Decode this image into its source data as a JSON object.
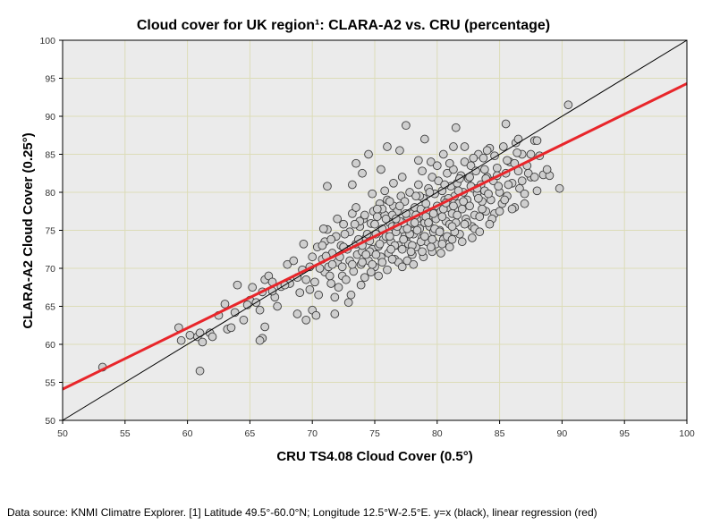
{
  "chart_data": {
    "type": "scatter",
    "title": "Cloud cover for UK region¹: CLARA-A2 vs. CRU (percentage)",
    "xlabel": "CRU TS4.08 Cloud Cover (0.5°)",
    "ylabel": "CLARA-A2 Cloud Cover (0.25°)",
    "xlim": [
      50,
      100
    ],
    "ylim": [
      50,
      100
    ],
    "xticks": [
      "50",
      "55",
      "60",
      "65",
      "70",
      "75",
      "80",
      "85",
      "90",
      "95",
      "100"
    ],
    "yticks": [
      "50",
      "55",
      "60",
      "65",
      "70",
      "75",
      "80",
      "85",
      "90",
      "95",
      "100"
    ],
    "grid": true,
    "reference_line": {
      "name": "y=x",
      "color": "#000000",
      "slope": 1,
      "intercept": 0
    },
    "regression_line": {
      "name": "linear regression",
      "color": "#e8262b",
      "x": [
        50,
        100
      ],
      "y": [
        54.1,
        94.3
      ]
    },
    "colors": {
      "plot_bg": "#ebebeb",
      "grid": "#dcdcb8",
      "point_fill": "#cfcfcf",
      "point_stroke": "#3a3a3a"
    },
    "points": [
      [
        53.2,
        57.0
      ],
      [
        59.3,
        62.2
      ],
      [
        59.5,
        60.5
      ],
      [
        60.8,
        61.0
      ],
      [
        61.0,
        61.5
      ],
      [
        61.2,
        60.3
      ],
      [
        61.0,
        56.5
      ],
      [
        61.8,
        61.5
      ],
      [
        62.5,
        63.8
      ],
      [
        63.0,
        65.3
      ],
      [
        63.2,
        62.0
      ],
      [
        63.8,
        64.2
      ],
      [
        64.0,
        67.8
      ],
      [
        64.5,
        63.2
      ],
      [
        65.0,
        65.8
      ],
      [
        65.5,
        65.5
      ],
      [
        65.8,
        64.5
      ],
      [
        66.0,
        66.9
      ],
      [
        66.2,
        68.5
      ],
      [
        66.5,
        69.0
      ],
      [
        66.8,
        68.2
      ],
      [
        66.0,
        60.8
      ],
      [
        66.2,
        62.3
      ],
      [
        65.8,
        60.5
      ],
      [
        67.0,
        66.2
      ],
      [
        67.2,
        65.0
      ],
      [
        67.5,
        67.6
      ],
      [
        68.0,
        70.5
      ],
      [
        68.2,
        68.0
      ],
      [
        68.5,
        71.0
      ],
      [
        68.8,
        64.0
      ],
      [
        69.0,
        66.8
      ],
      [
        69.2,
        69.8
      ],
      [
        69.3,
        73.2
      ],
      [
        69.5,
        68.5
      ],
      [
        69.8,
        70.2
      ],
      [
        70.0,
        71.5
      ],
      [
        70.2,
        68.2
      ],
      [
        70.4,
        72.8
      ],
      [
        70.5,
        66.5
      ],
      [
        70.8,
        71.2
      ],
      [
        71.0,
        69.5
      ],
      [
        71.0,
        73.5
      ],
      [
        71.2,
        75.1
      ],
      [
        71.3,
        70.2
      ],
      [
        71.5,
        68.0
      ],
      [
        71.6,
        72.0
      ],
      [
        71.8,
        66.2
      ],
      [
        71.9,
        74.2
      ],
      [
        72.0,
        70.8
      ],
      [
        72.2,
        71.5
      ],
      [
        72.3,
        73.0
      ],
      [
        72.4,
        69.0
      ],
      [
        72.5,
        75.8
      ],
      [
        72.7,
        68.5
      ],
      [
        72.8,
        72.5
      ],
      [
        73.0,
        71.0
      ],
      [
        73.0,
        74.8
      ],
      [
        73.2,
        77.2
      ],
      [
        73.3,
        69.6
      ],
      [
        73.5,
        73.2
      ],
      [
        73.6,
        71.8
      ],
      [
        73.8,
        75.5
      ],
      [
        73.9,
        70.5
      ],
      [
        74.0,
        72.2
      ],
      [
        74.1,
        76.5
      ],
      [
        74.2,
        68.8
      ],
      [
        74.3,
        74.0
      ],
      [
        74.5,
        71.0
      ],
      [
        74.6,
        73.6
      ],
      [
        74.7,
        75.9
      ],
      [
        74.8,
        72.5
      ],
      [
        74.9,
        77.5
      ],
      [
        75.0,
        70.2
      ],
      [
        75.1,
        74.5
      ],
      [
        75.2,
        76.8
      ],
      [
        75.3,
        72.9
      ],
      [
        75.4,
        78.5
      ],
      [
        75.5,
        71.5
      ],
      [
        75.6,
        75.2
      ],
      [
        75.7,
        73.8
      ],
      [
        75.8,
        77.0
      ],
      [
        75.9,
        74.2
      ],
      [
        76.0,
        79.0
      ],
      [
        76.1,
        72.0
      ],
      [
        76.2,
        76.0
      ],
      [
        76.3,
        73.5
      ],
      [
        76.4,
        75.5
      ],
      [
        76.5,
        78.2
      ],
      [
        76.6,
        71.2
      ],
      [
        76.7,
        74.8
      ],
      [
        76.8,
        77.5
      ],
      [
        76.9,
        73.0
      ],
      [
        77.0,
        76.2
      ],
      [
        77.1,
        79.5
      ],
      [
        77.2,
        72.5
      ],
      [
        77.3,
        75.0
      ],
      [
        77.4,
        78.8
      ],
      [
        77.5,
        74.0
      ],
      [
        77.6,
        76.8
      ],
      [
        77.7,
        73.2
      ],
      [
        77.8,
        80.0
      ],
      [
        77.9,
        75.8
      ],
      [
        78.0,
        77.2
      ],
      [
        78.1,
        74.5
      ],
      [
        78.2,
        78.0
      ],
      [
        78.3,
        72.8
      ],
      [
        78.4,
        76.5
      ],
      [
        78.5,
        81.0
      ],
      [
        78.6,
        75.2
      ],
      [
        78.7,
        77.8
      ],
      [
        78.8,
        74.0
      ],
      [
        78.9,
        79.2
      ],
      [
        79.0,
        76.0
      ],
      [
        79.1,
        78.5
      ],
      [
        79.2,
        73.5
      ],
      [
        79.3,
        80.5
      ],
      [
        79.4,
        75.5
      ],
      [
        79.5,
        77.0
      ],
      [
        79.6,
        82.0
      ],
      [
        79.7,
        74.8
      ],
      [
        79.8,
        79.8
      ],
      [
        79.9,
        76.5
      ],
      [
        80.0,
        78.2
      ],
      [
        80.1,
        81.5
      ],
      [
        80.2,
        75.0
      ],
      [
        80.3,
        77.5
      ],
      [
        80.4,
        80.2
      ],
      [
        80.5,
        73.8
      ],
      [
        80.6,
        79.0
      ],
      [
        80.7,
        76.2
      ],
      [
        80.8,
        82.5
      ],
      [
        80.9,
        78.0
      ],
      [
        81.0,
        75.8
      ],
      [
        81.1,
        80.8
      ],
      [
        81.2,
        77.2
      ],
      [
        81.3,
        83.0
      ],
      [
        81.4,
        79.5
      ],
      [
        81.5,
        76.0
      ],
      [
        81.6,
        81.2
      ],
      [
        81.7,
        78.5
      ],
      [
        81.8,
        74.5
      ],
      [
        81.9,
        82.2
      ],
      [
        82.0,
        77.8
      ],
      [
        82.1,
        80.0
      ],
      [
        82.2,
        84.0
      ],
      [
        82.3,
        76.5
      ],
      [
        82.4,
        79.0
      ],
      [
        82.5,
        81.8
      ],
      [
        82.6,
        78.2
      ],
      [
        82.7,
        83.5
      ],
      [
        82.8,
        75.5
      ],
      [
        82.9,
        80.5
      ],
      [
        83.0,
        77.0
      ],
      [
        83.1,
        82.8
      ],
      [
        83.2,
        79.8
      ],
      [
        83.3,
        85.0
      ],
      [
        83.4,
        76.8
      ],
      [
        83.5,
        81.0
      ],
      [
        83.6,
        78.8
      ],
      [
        83.7,
        84.5
      ],
      [
        83.8,
        80.2
      ],
      [
        83.9,
        77.5
      ],
      [
        84.0,
        82.0
      ],
      [
        84.2,
        85.8
      ],
      [
        84.3,
        79.0
      ],
      [
        84.5,
        81.5
      ],
      [
        84.6,
        77.2
      ],
      [
        84.8,
        83.2
      ],
      [
        85.0,
        80.0
      ],
      [
        85.2,
        78.5
      ],
      [
        85.3,
        86.0
      ],
      [
        85.5,
        82.5
      ],
      [
        85.6,
        79.5
      ],
      [
        85.8,
        84.0
      ],
      [
        86.0,
        81.2
      ],
      [
        86.2,
        78.0
      ],
      [
        86.3,
        86.5
      ],
      [
        86.5,
        82.8
      ],
      [
        86.6,
        80.5
      ],
      [
        86.8,
        85.0
      ],
      [
        87.0,
        79.8
      ],
      [
        87.2,
        83.5
      ],
      [
        87.5,
        82.0
      ],
      [
        87.8,
        86.8
      ],
      [
        88.0,
        80.2
      ],
      [
        88.2,
        84.8
      ],
      [
        88.5,
        82.3
      ],
      [
        89.0,
        82.2
      ],
      [
        89.8,
        80.5
      ],
      [
        90.5,
        91.5
      ],
      [
        85.5,
        89.0
      ],
      [
        86.5,
        87.0
      ],
      [
        81.5,
        88.5
      ],
      [
        81.3,
        86.0
      ],
      [
        79.0,
        87.0
      ],
      [
        77.5,
        88.8
      ],
      [
        77.0,
        85.5
      ],
      [
        76.0,
        86.0
      ],
      [
        75.5,
        83.0
      ],
      [
        74.5,
        85.0
      ],
      [
        74.0,
        82.5
      ],
      [
        73.5,
        83.8
      ],
      [
        71.2,
        80.8
      ],
      [
        73.2,
        81.0
      ],
      [
        78.5,
        84.2
      ],
      [
        79.5,
        84.0
      ],
      [
        80.5,
        85.0
      ],
      [
        82.2,
        86.0
      ],
      [
        84.0,
        85.5
      ],
      [
        72.5,
        72.8
      ],
      [
        73.8,
        76.2
      ],
      [
        74.4,
        74.5
      ],
      [
        75.0,
        75.8
      ],
      [
        75.6,
        77.8
      ],
      [
        76.4,
        77.0
      ],
      [
        76.8,
        75.5
      ],
      [
        77.4,
        74.2
      ],
      [
        77.9,
        76.0
      ],
      [
        78.6,
        79.5
      ],
      [
        79.2,
        77.5
      ],
      [
        79.8,
        75.2
      ],
      [
        80.4,
        76.8
      ],
      [
        80.9,
        79.2
      ],
      [
        81.6,
        77.0
      ],
      [
        82.4,
        76.0
      ],
      [
        83.0,
        75.2
      ],
      [
        83.6,
        77.8
      ],
      [
        84.4,
        76.5
      ],
      [
        85.0,
        77.5
      ],
      [
        86.0,
        77.8
      ],
      [
        87.0,
        78.5
      ],
      [
        70.6,
        70.0
      ],
      [
        71.4,
        69.0
      ],
      [
        72.1,
        67.5
      ],
      [
        73.1,
        66.5
      ],
      [
        73.9,
        67.8
      ],
      [
        74.7,
        69.5
      ],
      [
        75.3,
        69.0
      ],
      [
        76.0,
        69.8
      ],
      [
        76.9,
        70.8
      ],
      [
        77.6,
        71.0
      ],
      [
        78.1,
        70.5
      ],
      [
        78.9,
        71.5
      ],
      [
        79.6,
        72.2
      ],
      [
        80.3,
        72.0
      ],
      [
        81.0,
        72.8
      ],
      [
        69.8,
        67.2
      ],
      [
        70.0,
        64.5
      ],
      [
        70.3,
        63.8
      ],
      [
        71.8,
        64.0
      ],
      [
        72.9,
        65.5
      ],
      [
        69.5,
        63.2
      ],
      [
        68.8,
        68.8
      ],
      [
        70.9,
        75.2
      ],
      [
        72.0,
        76.5
      ],
      [
        73.5,
        78.0
      ],
      [
        74.8,
        79.8
      ],
      [
        75.8,
        80.2
      ],
      [
        76.5,
        81.2
      ],
      [
        77.2,
        82.0
      ],
      [
        78.8,
        82.8
      ],
      [
        80.0,
        83.5
      ],
      [
        81.0,
        83.8
      ],
      [
        82.9,
        84.5
      ],
      [
        84.6,
        84.8
      ],
      [
        85.6,
        84.2
      ],
      [
        87.5,
        85.0
      ],
      [
        88.8,
        83.0
      ],
      [
        86.8,
        81.5
      ],
      [
        86.2,
        83.8
      ],
      [
        83.8,
        83.0
      ],
      [
        82.6,
        82.0
      ],
      [
        81.8,
        81.8
      ],
      [
        80.6,
        81.0
      ],
      [
        79.4,
        80.0
      ],
      [
        78.3,
        79.5
      ],
      [
        77.0,
        78.2
      ],
      [
        76.2,
        78.8
      ],
      [
        75.2,
        77.8
      ],
      [
        74.2,
        77.0
      ],
      [
        73.4,
        75.8
      ],
      [
        72.6,
        74.5
      ],
      [
        71.5,
        73.8
      ],
      [
        70.8,
        73.0
      ],
      [
        67.8,
        67.8
      ],
      [
        66.8,
        67.0
      ],
      [
        65.2,
        67.5
      ],
      [
        64.8,
        65.2
      ],
      [
        63.5,
        62.2
      ],
      [
        62.0,
        61.0
      ],
      [
        60.2,
        61.2
      ],
      [
        77.3,
        73.8
      ],
      [
        78.0,
        73.0
      ],
      [
        78.7,
        73.5
      ],
      [
        79.9,
        73.2
      ],
      [
        80.8,
        74.2
      ],
      [
        81.4,
        74.8
      ],
      [
        82.0,
        73.5
      ],
      [
        82.8,
        74.0
      ],
      [
        83.4,
        74.8
      ],
      [
        84.2,
        75.8
      ],
      [
        74.0,
        73.0
      ],
      [
        74.6,
        72.2
      ],
      [
        75.4,
        73.2
      ],
      [
        76.2,
        74.2
      ],
      [
        77.8,
        74.5
      ],
      [
        78.4,
        75.0
      ],
      [
        79.0,
        74.2
      ],
      [
        80.2,
        74.8
      ],
      [
        81.2,
        75.5
      ],
      [
        82.2,
        75.8
      ],
      [
        75.9,
        76.5
      ],
      [
        76.7,
        76.5
      ],
      [
        77.5,
        77.2
      ],
      [
        78.3,
        77.0
      ],
      [
        79.1,
        76.8
      ],
      [
        79.7,
        77.2
      ],
      [
        80.5,
        77.8
      ],
      [
        81.3,
        78.2
      ],
      [
        82.1,
        78.8
      ],
      [
        83.3,
        79.2
      ],
      [
        84.1,
        79.8
      ],
      [
        84.9,
        80.8
      ],
      [
        85.7,
        81.0
      ],
      [
        87.3,
        82.5
      ],
      [
        71.6,
        70.5
      ],
      [
        72.4,
        70.2
      ],
      [
        73.2,
        70.5
      ],
      [
        74.0,
        70.8
      ],
      [
        74.8,
        70.5
      ],
      [
        75.6,
        70.8
      ],
      [
        76.4,
        71.2
      ],
      [
        77.2,
        70.2
      ],
      [
        78.0,
        71.8
      ],
      [
        78.8,
        72.2
      ],
      [
        79.6,
        73.8
      ],
      [
        80.4,
        73.2
      ],
      [
        81.2,
        73.8
      ],
      [
        83.2,
        80.5
      ],
      [
        84.8,
        82.2
      ],
      [
        86.4,
        85.2
      ],
      [
        88.0,
        86.8
      ],
      [
        87.8,
        82.0
      ],
      [
        85.4,
        79.0
      ],
      [
        79.3,
        76.0
      ],
      [
        80.7,
        78.6
      ],
      [
        76.6,
        73.0
      ],
      [
        74.3,
        71.8
      ],
      [
        73.7,
        73.8
      ],
      [
        77.6,
        75.2
      ],
      [
        78.2,
        76.0
      ],
      [
        81.7,
        80.2
      ],
      [
        82.7,
        80.8
      ],
      [
        83.9,
        81.8
      ],
      [
        75.1,
        71.8
      ],
      [
        76.3,
        72.5
      ],
      [
        77.9,
        72.2
      ],
      [
        79.5,
        72.8
      ],
      [
        71.1,
        71.6
      ]
    ]
  },
  "footnote": "Data source: KNMI Climatre Explorer. [1] Latitude 49.5°-60.0°N; Longitude 12.5°W-2.5°E. y=x (black), linear regression (red)"
}
